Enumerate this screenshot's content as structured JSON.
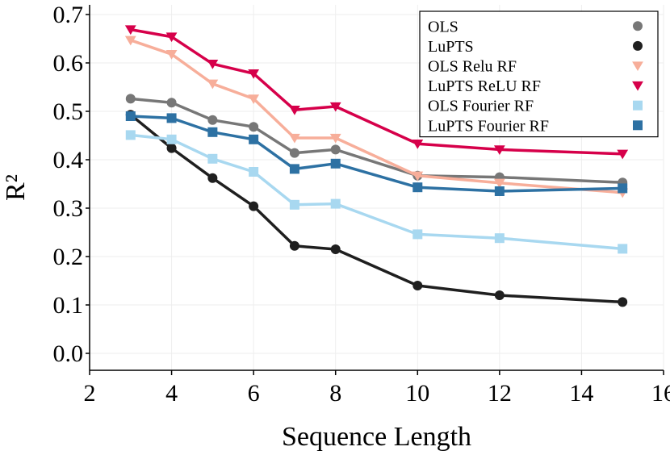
{
  "chart_data": {
    "type": "line",
    "title": "",
    "xlabel": "Sequence Length",
    "ylabel": "R²",
    "xlim": [
      2,
      16
    ],
    "ylim": [
      -0.035,
      0.72
    ],
    "xticks": [
      "2",
      "4",
      "6",
      "8",
      "10",
      "12",
      "14",
      "16"
    ],
    "yticks": [
      "0.0",
      "0.1",
      "0.2",
      "0.3",
      "0.4",
      "0.5",
      "0.6",
      "0.7"
    ],
    "grid": true,
    "legend_position": "top-right",
    "x": [
      3,
      4,
      5,
      6,
      7,
      8,
      10,
      12,
      15
    ],
    "series": [
      {
        "name": "OLS",
        "line_color": "#777777",
        "marker_color": "#777777",
        "marker": "circle",
        "values": [
          0.526,
          0.518,
          0.482,
          0.468,
          0.414,
          0.421,
          0.367,
          0.364,
          0.353
        ]
      },
      {
        "name": "LuPTS",
        "line_color": "#1f1f1f",
        "marker_color": "#1f1f1f",
        "marker": "circle",
        "values": [
          0.493,
          0.424,
          0.362,
          0.304,
          0.222,
          0.215,
          0.14,
          0.12,
          0.106
        ]
      },
      {
        "name": "OLS Relu RF",
        "line_color": "#f7ae9a",
        "marker_color": "#f7ae9a",
        "marker": "triangle-down",
        "values": [
          0.647,
          0.618,
          0.557,
          0.526,
          0.445,
          0.445,
          0.367,
          0.352,
          0.332
        ]
      },
      {
        "name": "LuPTS ReLU RF",
        "line_color": "#d6004a",
        "marker_color": "#d6004a",
        "marker": "triangle-down",
        "values": [
          0.669,
          0.654,
          0.598,
          0.578,
          0.503,
          0.51,
          0.433,
          0.421,
          0.412
        ]
      },
      {
        "name": "OLS Fourier RF",
        "line_color": "#a8d8f0",
        "marker_color": "#a8d8f0",
        "marker": "square",
        "values": [
          0.451,
          0.442,
          0.402,
          0.375,
          0.307,
          0.309,
          0.246,
          0.238,
          0.216
        ]
      },
      {
        "name": "LuPTS Fourier RF",
        "line_color": "#2d71a3",
        "marker_color": "#2d71a3",
        "marker": "square",
        "values": [
          0.49,
          0.486,
          0.457,
          0.442,
          0.381,
          0.392,
          0.343,
          0.335,
          0.341
        ]
      }
    ]
  }
}
